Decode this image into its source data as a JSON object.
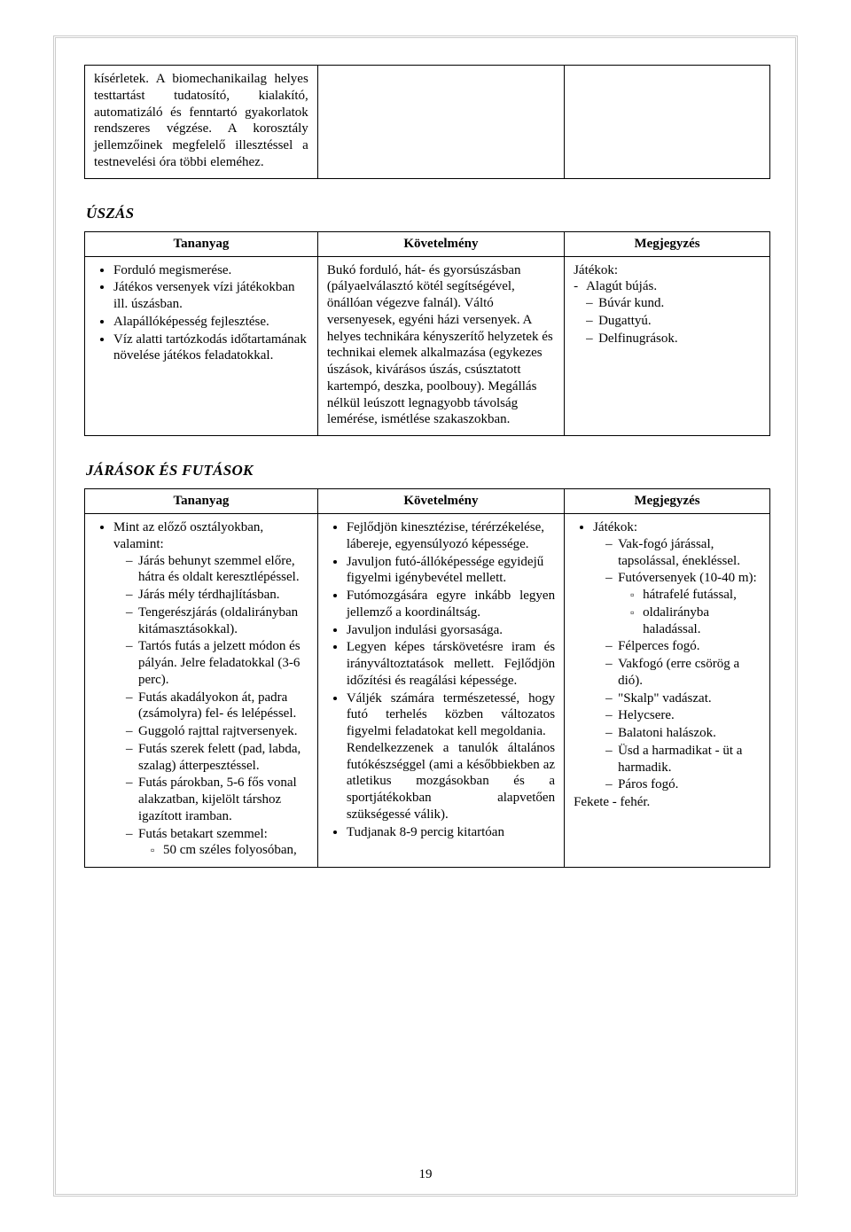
{
  "page_number": "19",
  "top_table": {
    "cell_text": "kísérletek. A biomechanikailag helyes testtartást tudatosító, kialakító, automatizáló és fenntartó gyakorlatok rendszeres végzése. A korosztály jellemzőinek megfelelő illesztéssel a testnevelési óra többi eleméhez."
  },
  "section1": {
    "title": "ÚSZÁS",
    "headers": {
      "a": "Tananyag",
      "b": "Követelmény",
      "c": "Megjegyzés"
    },
    "colA": {
      "items": [
        "Forduló megismerése.",
        "Játékos versenyek vízi játékokban ill. úszásban.",
        "Alapállóképesség fejlesztése.",
        "Víz alatti tartózkodás időtartamának növelése játékos feladatokkal."
      ]
    },
    "colB": {
      "text": "Bukó forduló, hát- és gyorsúszásban (pályaelválasztó kötél segítségével, önállóan végezve falnál). Váltó versenyesek, egyéni házi versenyek. A helyes technikára kényszerítő helyzetek és technikai elemek alkalmazása (egykezes úszások, kivárásos úszás, csúsztatott kartempó, deszka, poolbouy). Megállás nélkül leúszott legnagyobb távolság lemérése, ismétlése szakaszokban."
    },
    "colC": {
      "lead": "Játékok:",
      "first": "Alagút bújás.",
      "rest": [
        "Búvár kund.",
        "Dugattyú.",
        "Delfinugrások."
      ]
    }
  },
  "section2": {
    "title": "JÁRÁSOK ÉS FUTÁSOK",
    "headers": {
      "a": "Tananyag",
      "b": "Követelmény",
      "c": "Megjegyzés"
    },
    "colA": {
      "intro": "Mint az előző osztályokban, valamint:",
      "items": [
        "Járás behunyt szemmel előre, hátra és oldalt keresztlépéssel.",
        "Járás mély térdhajlításban.",
        "Tengerészjárás (oldalirányban kitámasztásokkal).",
        "Tartós futás a jelzett módon és pályán. Jelre feladatokkal (3-6 perc).",
        "Futás akadályokon át, padra (zsámolyra) fel- és lelépéssel.",
        "Guggoló rajttal rajtversenyek.",
        "Futás szerek felett (pad, labda, szalag) átterpesztéssel.",
        "Futás párokban, 5-6 fős vonal alakzatban, kijelölt társhoz igazított iramban.",
        "Futás betakart szemmel:"
      ],
      "sub_last": [
        "50 cm széles folyosóban,"
      ]
    },
    "colB": {
      "items": [
        "Fejlődjön kinesztézise, térérzékelése, lábereje, egyensúlyozó képessége.",
        "Javuljon futó-állóképessége egyidejű figyelmi igénybevétel mellett.",
        "Futómozgására egyre inkább legyen jellemző a koordináltság.",
        "Javuljon indulási gyorsasága.",
        "Legyen képes társkövetésre iram és irányváltoztatások mellett. Fejlődjön időzítési és reagálási képessége.",
        "Váljék számára természetessé, hogy futó terhelés közben változatos figyelmi feladatokat kell megoldania.\nRendelkezzenek a tanulók általános futókészséggel (ami a későbbiekben az atletikus mozgásokban és a sportjátékokban alapvetően szükségessé válik).",
        "Tudjanak 8-9 percig kitartóan"
      ]
    },
    "colC": {
      "lead": "Játékok:",
      "items": [
        "Vak-fogó járással, tapsolással, énekléssel.",
        "Futóversenyek (10-40 m):",
        "Félperces fogó.",
        "Vakfogó (erre csörög a dió).",
        "\"Skalp\" vadászat.",
        "Helycsere.",
        "Balatoni halászok.",
        "Üsd a harmadikat - üt a harmadik.",
        "Páros fogó."
      ],
      "sub_after_1": [
        "hátrafelé futással,",
        "oldalirányba haladással."
      ],
      "tail": "Fekete - fehér."
    }
  }
}
